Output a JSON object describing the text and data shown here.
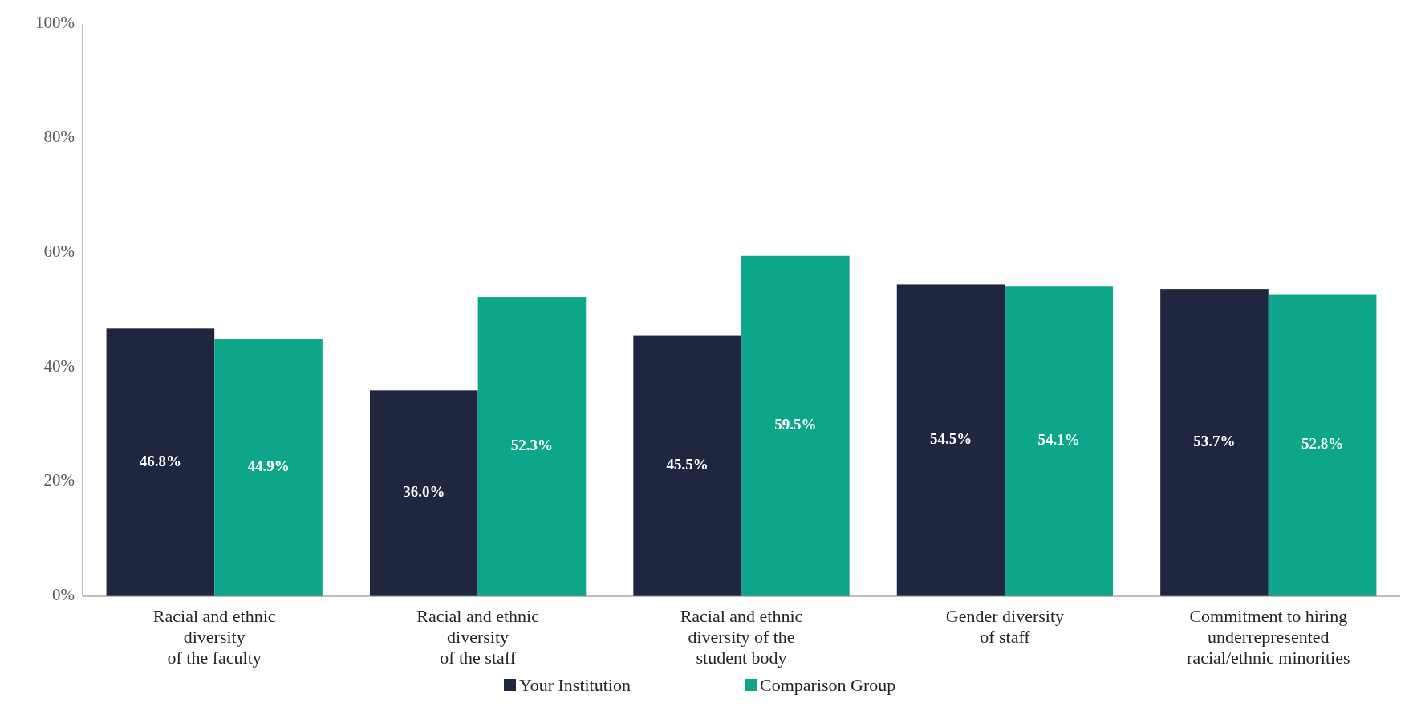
{
  "chart_data": {
    "type": "bar",
    "categories": [
      "Racial and ethnic\ndiversity\nof the faculty",
      "Racial and ethnic\ndiversity\nof the staff",
      "Racial and ethnic\ndiversity of the\nstudent body",
      "Gender diversity\nof staff",
      "Commitment to hiring\nunderrepresented\nracial/ethnic minorities"
    ],
    "series": [
      {
        "name": "Your Institution",
        "color": "#1e2640",
        "values": [
          46.8,
          36.0,
          45.5,
          54.5,
          53.7
        ],
        "value_labels": [
          "46.8%",
          "36.0%",
          "45.5%",
          "54.5%",
          "53.7%"
        ]
      },
      {
        "name": "Comparison Group",
        "color": "#0ea68a",
        "values": [
          44.9,
          52.3,
          59.5,
          54.1,
          52.8
        ],
        "value_labels": [
          "44.9%",
          "52.3%",
          "59.5%",
          "54.1%",
          "52.8%"
        ]
      }
    ],
    "ylim": [
      0,
      100
    ],
    "yticks": [
      {
        "value": 0,
        "label": "0%"
      },
      {
        "value": 20,
        "label": "20%"
      },
      {
        "value": 40,
        "label": "40%"
      },
      {
        "value": 60,
        "label": "60%"
      },
      {
        "value": 80,
        "label": "80%"
      },
      {
        "value": 100,
        "label": "100%"
      }
    ],
    "legend": "bottom",
    "grid": false
  }
}
